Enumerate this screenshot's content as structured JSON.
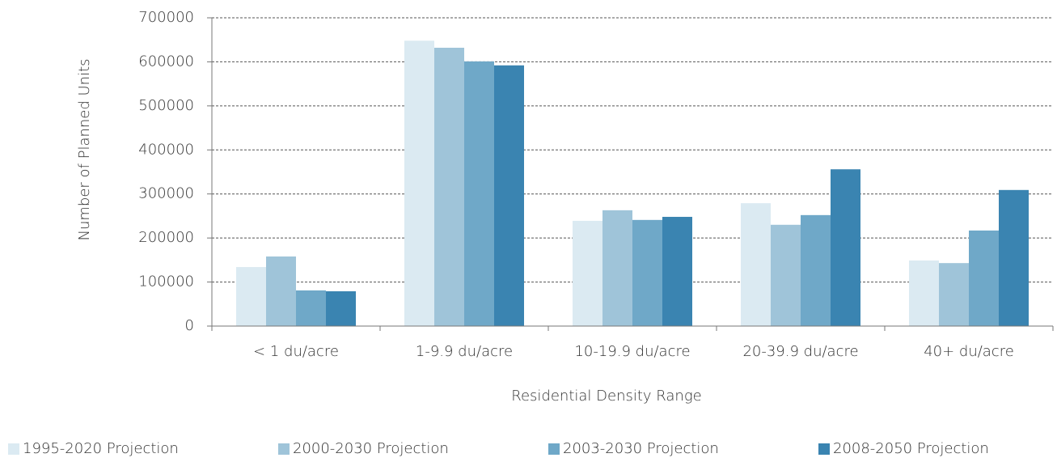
{
  "chart_data": {
    "type": "bar",
    "x_label": "Residential Density Range",
    "y_label": "Number of Planned Units",
    "categories": [
      "< 1 du/acre",
      "1-9.9 du/acre",
      "10-19.9 du/acre",
      "20-39.9 du/acre",
      "40+ du/acre"
    ],
    "series": [
      {
        "name": "1995-2020 Projection",
        "color": "#dbeaf2",
        "values": [
          134000,
          648000,
          239000,
          279000,
          149000
        ]
      },
      {
        "name": "2000-2030 Projection",
        "color": "#9fc4d9",
        "values": [
          158000,
          632000,
          263000,
          230000,
          143000
        ]
      },
      {
        "name": "2003-2030 Projection",
        "color": "#6fa8c8",
        "values": [
          81000,
          601000,
          241000,
          252000,
          217000
        ]
      },
      {
        "name": "2008-2050 Projection",
        "color": "#3a84b1",
        "values": [
          79000,
          592000,
          248000,
          356000,
          309000
        ]
      }
    ],
    "ylim": [
      0,
      700000
    ],
    "yticks": [
      0,
      100000,
      200000,
      300000,
      400000,
      500000,
      600000,
      700000
    ],
    "grid": true,
    "legend": "bottom"
  }
}
